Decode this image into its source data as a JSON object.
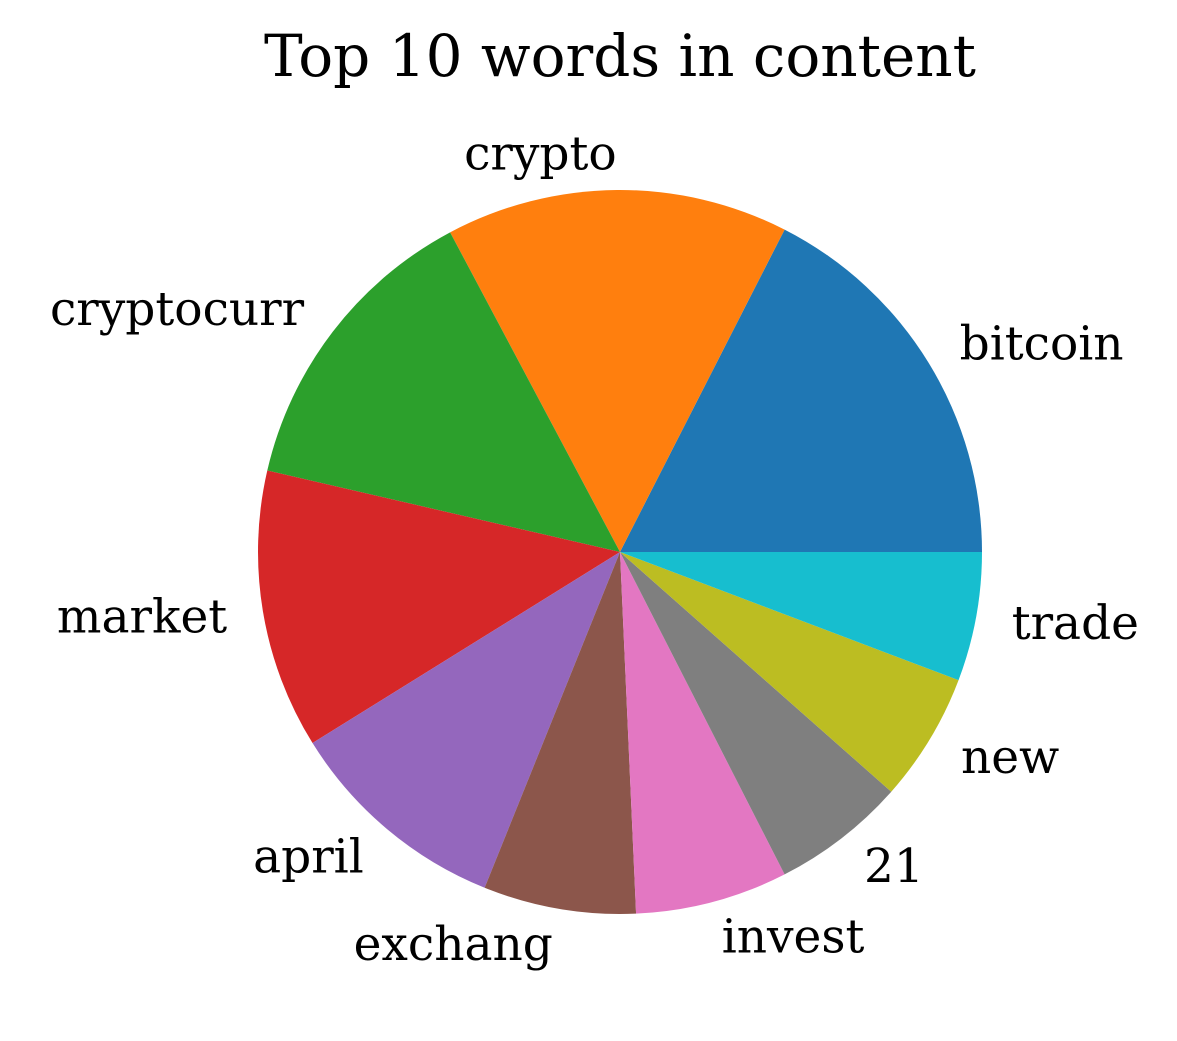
{
  "chart_data": {
    "type": "pie",
    "title": "Top 10 words in content",
    "start_angle_deg": 0,
    "direction": "counterclockwise",
    "slices": [
      {
        "label": "bitcoin",
        "value": 16.7,
        "color": "#1f77b4"
      },
      {
        "label": "crypto",
        "value": 14.6,
        "color": "#ff7f0e"
      },
      {
        "label": "cryptocurr",
        "value": 13.0,
        "color": "#2ca02c"
      },
      {
        "label": "market",
        "value": 11.9,
        "color": "#d62728"
      },
      {
        "label": "april",
        "value": 9.6,
        "color": "#9467bd"
      },
      {
        "label": "exchang",
        "value": 6.5,
        "color": "#8c564b"
      },
      {
        "label": "invest",
        "value": 6.5,
        "color": "#e377c2"
      },
      {
        "label": "21",
        "value": 5.7,
        "color": "#7f7f7f"
      },
      {
        "label": "new",
        "value": 5.5,
        "color": "#bcbd22"
      },
      {
        "label": "trade",
        "value": 5.5,
        "color": "#17becf"
      }
    ]
  }
}
